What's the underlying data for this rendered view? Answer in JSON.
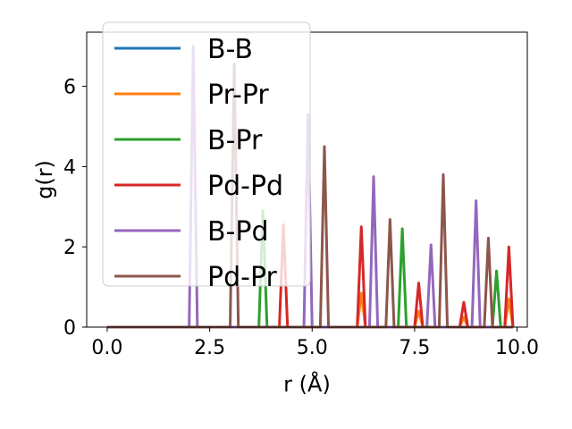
{
  "chart_data": {
    "type": "line",
    "xlabel": "r (Å)",
    "ylabel": "g(r)",
    "xlim": [
      -0.5,
      10.25
    ],
    "ylim": [
      0,
      7.35
    ],
    "xticks": [
      0.0,
      2.5,
      5.0,
      7.5,
      10.0
    ],
    "xtick_labels": [
      "0.0",
      "2.5",
      "5.0",
      "7.5",
      "10.0"
    ],
    "yticks": [
      0,
      2,
      4,
      6
    ],
    "ytick_labels": [
      "0",
      "2",
      "4",
      "6"
    ],
    "grid": false,
    "legend_position": "top-left",
    "series": [
      {
        "name": "B-B",
        "color": "#1f77b4",
        "peaks": []
      },
      {
        "name": "Pr-Pr",
        "color": "#ff7f0e",
        "peaks": [
          [
            6.2,
            0.85
          ],
          [
            7.6,
            0.4
          ],
          [
            8.7,
            0.25
          ],
          [
            9.8,
            0.7
          ]
        ]
      },
      {
        "name": "B-Pr",
        "color": "#2ca02c",
        "peaks": [
          [
            3.8,
            2.9
          ],
          [
            7.2,
            2.45
          ],
          [
            9.5,
            1.4
          ]
        ]
      },
      {
        "name": "Pd-Pd",
        "color": "#d62728",
        "peaks": [
          [
            4.3,
            2.55
          ],
          [
            6.2,
            2.5
          ],
          [
            7.6,
            1.1
          ],
          [
            8.7,
            0.62
          ],
          [
            9.8,
            2.0
          ]
        ]
      },
      {
        "name": "B-Pd",
        "color": "#9467bd",
        "peaks": [
          [
            2.1,
            7.0
          ],
          [
            4.9,
            5.3
          ],
          [
            6.5,
            3.75
          ],
          [
            7.9,
            2.05
          ],
          [
            9.0,
            3.15
          ]
        ]
      },
      {
        "name": "Pd-Pr",
        "color": "#8c564b",
        "peaks": [
          [
            3.1,
            6.55
          ],
          [
            5.3,
            4.5
          ],
          [
            6.9,
            2.68
          ],
          [
            8.2,
            3.8
          ],
          [
            9.3,
            2.22
          ]
        ]
      }
    ]
  }
}
